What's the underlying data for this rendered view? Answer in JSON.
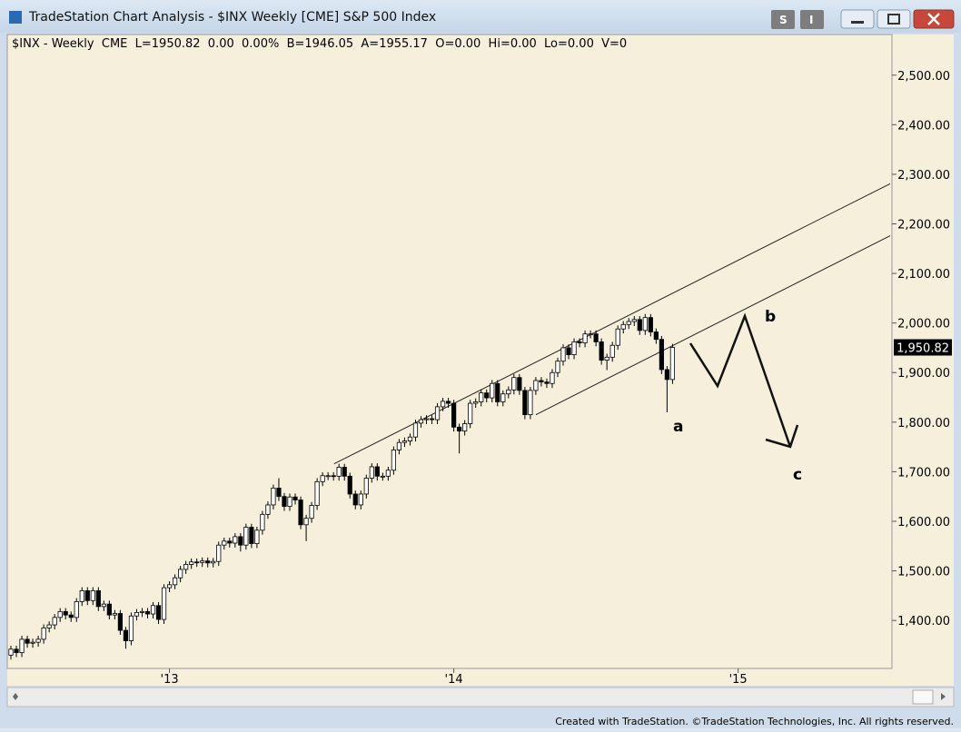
{
  "window": {
    "title": "TradeStation Chart Analysis - $INX Weekly [CME] S&P 500 Index",
    "toolbar": [
      "S",
      "I"
    ]
  },
  "footer": "Created with TradeStation. ©TradeStation Technologies, Inc. All rights reserved.",
  "chart_data": {
    "type": "candlestick",
    "subtitle": "$INX - Weekly  CME  L=1950.82  0.00  0.00%  B=1946.05  A=1955.17  O=0.00  Hi=0.00  Lo=0.00  V=0",
    "open": [
      1330,
      1342,
      1335,
      1362,
      1354,
      1356,
      1362,
      1385,
      1391,
      1406,
      1418,
      1411,
      1406,
      1438,
      1460,
      1440,
      1460,
      1428,
      1433,
      1411,
      1414,
      1380,
      1359,
      1409,
      1416,
      1418,
      1413,
      1430,
      1402,
      1466,
      1472,
      1486,
      1503,
      1513,
      1518,
      1517,
      1520,
      1516,
      1519,
      1552,
      1560,
      1556,
      1569,
      1552,
      1588,
      1555,
      1582,
      1614,
      1633,
      1667,
      1650,
      1630,
      1649,
      1643,
      1593,
      1606,
      1632,
      1680,
      1692,
      1692,
      1691,
      1709,
      1691,
      1655,
      1633,
      1655,
      1687,
      1710,
      1691,
      1691,
      1703,
      1744,
      1759,
      1762,
      1770,
      1798,
      1805,
      1807,
      1805,
      1831,
      1842,
      1838,
      1790,
      1782,
      1797,
      1838,
      1841,
      1859,
      1849,
      1878,
      1841,
      1857,
      1865,
      1890,
      1864,
      1815,
      1864,
      1884,
      1881,
      1878,
      1900,
      1923,
      1950,
      1936,
      1962,
      1960,
      1978,
      1978,
      1962,
      1925,
      1931,
      1955,
      1988,
      1997,
      2003,
      2007,
      1985,
      2011,
      1982,
      1967,
      1906,
      1886
    ],
    "high": [
      1349,
      1349,
      1369,
      1369,
      1363,
      1369,
      1392,
      1398,
      1413,
      1425,
      1425,
      1418,
      1445,
      1467,
      1467,
      1467,
      1467,
      1440,
      1440,
      1421,
      1421,
      1387,
      1416,
      1423,
      1425,
      1425,
      1437,
      1437,
      1473,
      1479,
      1493,
      1510,
      1520,
      1525,
      1525,
      1527,
      1527,
      1526,
      1559,
      1567,
      1567,
      1576,
      1576,
      1595,
      1595,
      1589,
      1621,
      1640,
      1674,
      1687,
      1657,
      1656,
      1656,
      1650,
      1613,
      1639,
      1687,
      1699,
      1699,
      1699,
      1716,
      1716,
      1698,
      1662,
      1662,
      1694,
      1717,
      1717,
      1698,
      1710,
      1751,
      1766,
      1769,
      1777,
      1805,
      1812,
      1814,
      1814,
      1838,
      1849,
      1849,
      1845,
      1797,
      1804,
      1845,
      1848,
      1866,
      1866,
      1885,
      1885,
      1864,
      1872,
      1897,
      1897,
      1871,
      1871,
      1891,
      1891,
      1888,
      1907,
      1930,
      1957,
      1957,
      1969,
      1969,
      1985,
      1985,
      1985,
      1969,
      1938,
      1962,
      1995,
      2004,
      2010,
      2014,
      2014,
      2018,
      2018,
      1989,
      1974,
      1913,
      1958
    ],
    "low": [
      1321,
      1326,
      1326,
      1345,
      1345,
      1347,
      1353,
      1376,
      1382,
      1397,
      1402,
      1397,
      1397,
      1429,
      1431,
      1431,
      1419,
      1419,
      1402,
      1402,
      1371,
      1343,
      1350,
      1400,
      1407,
      1404,
      1404,
      1393,
      1393,
      1457,
      1463,
      1477,
      1494,
      1504,
      1508,
      1508,
      1507,
      1507,
      1510,
      1543,
      1547,
      1547,
      1539,
      1543,
      1546,
      1546,
      1573,
      1605,
      1624,
      1641,
      1621,
      1621,
      1634,
      1584,
      1560,
      1597,
      1623,
      1671,
      1683,
      1682,
      1682,
      1682,
      1646,
      1624,
      1624,
      1646,
      1678,
      1682,
      1682,
      1682,
      1694,
      1735,
      1750,
      1753,
      1761,
      1789,
      1796,
      1796,
      1796,
      1822,
      1829,
      1781,
      1737,
      1773,
      1788,
      1829,
      1832,
      1840,
      1840,
      1832,
      1832,
      1848,
      1856,
      1855,
      1806,
      1806,
      1855,
      1872,
      1869,
      1869,
      1891,
      1914,
      1927,
      1927,
      1951,
      1951,
      1969,
      1953,
      1916,
      1905,
      1922,
      1946,
      1979,
      1988,
      1994,
      1976,
      1976,
      1973,
      1958,
      1897,
      1820,
      1877
    ],
    "close": [
      1342,
      1335,
      1362,
      1354,
      1356,
      1362,
      1385,
      1391,
      1406,
      1418,
      1411,
      1406,
      1438,
      1460,
      1440,
      1460,
      1428,
      1433,
      1411,
      1414,
      1380,
      1359,
      1409,
      1416,
      1418,
      1413,
      1430,
      1402,
      1466,
      1472,
      1486,
      1503,
      1513,
      1518,
      1517,
      1520,
      1516,
      1519,
      1552,
      1560,
      1556,
      1569,
      1552,
      1588,
      1555,
      1582,
      1614,
      1633,
      1667,
      1650,
      1630,
      1649,
      1643,
      1593,
      1606,
      1632,
      1680,
      1692,
      1692,
      1691,
      1709,
      1691,
      1655,
      1633,
      1655,
      1687,
      1710,
      1691,
      1691,
      1703,
      1744,
      1759,
      1762,
      1770,
      1798,
      1805,
      1807,
      1805,
      1831,
      1842,
      1838,
      1790,
      1782,
      1797,
      1838,
      1841,
      1859,
      1849,
      1878,
      1841,
      1857,
      1865,
      1890,
      1864,
      1815,
      1864,
      1884,
      1881,
      1878,
      1900,
      1923,
      1950,
      1936,
      1962,
      1960,
      1978,
      1978,
      1962,
      1925,
      1931,
      1955,
      1988,
      1997,
      2003,
      2007,
      1985,
      2011,
      1982,
      1967,
      1906,
      1886,
      1950.82
    ],
    "last_label": "1,950.82",
    "xlim": [
      0,
      160.8
    ],
    "xticks": [
      {
        "value": 29,
        "label": "'13"
      },
      {
        "value": 81,
        "label": "'14"
      },
      {
        "value": 133,
        "label": "'15"
      }
    ],
    "ylim": [
      1305,
      2582
    ],
    "yticks": [
      {
        "value": 1400,
        "label": "1,400.00"
      },
      {
        "value": 1500,
        "label": "1,500.00"
      },
      {
        "value": 1600,
        "label": "1,600.00"
      },
      {
        "value": 1700,
        "label": "1,700.00"
      },
      {
        "value": 1800,
        "label": "1,800.00"
      },
      {
        "value": 1900,
        "label": "1,900.00"
      },
      {
        "value": 2000,
        "label": "2,000.00"
      },
      {
        "value": 2100,
        "label": "2,100.00"
      },
      {
        "value": 2200,
        "label": "2,200.00"
      },
      {
        "value": 2300,
        "label": "2,300.00"
      },
      {
        "value": 2400,
        "label": "2,400.00"
      },
      {
        "value": 2500,
        "label": "2,500.00"
      }
    ],
    "trendlines": [
      {
        "x": [
          59.1,
          160.8
        ],
        "y": [
          1716,
          2281
        ]
      },
      {
        "x": [
          96.0,
          160.8
        ],
        "y": [
          1815,
          2176
        ]
      }
    ],
    "annotations": [
      "a",
      "b",
      "c"
    ]
  }
}
